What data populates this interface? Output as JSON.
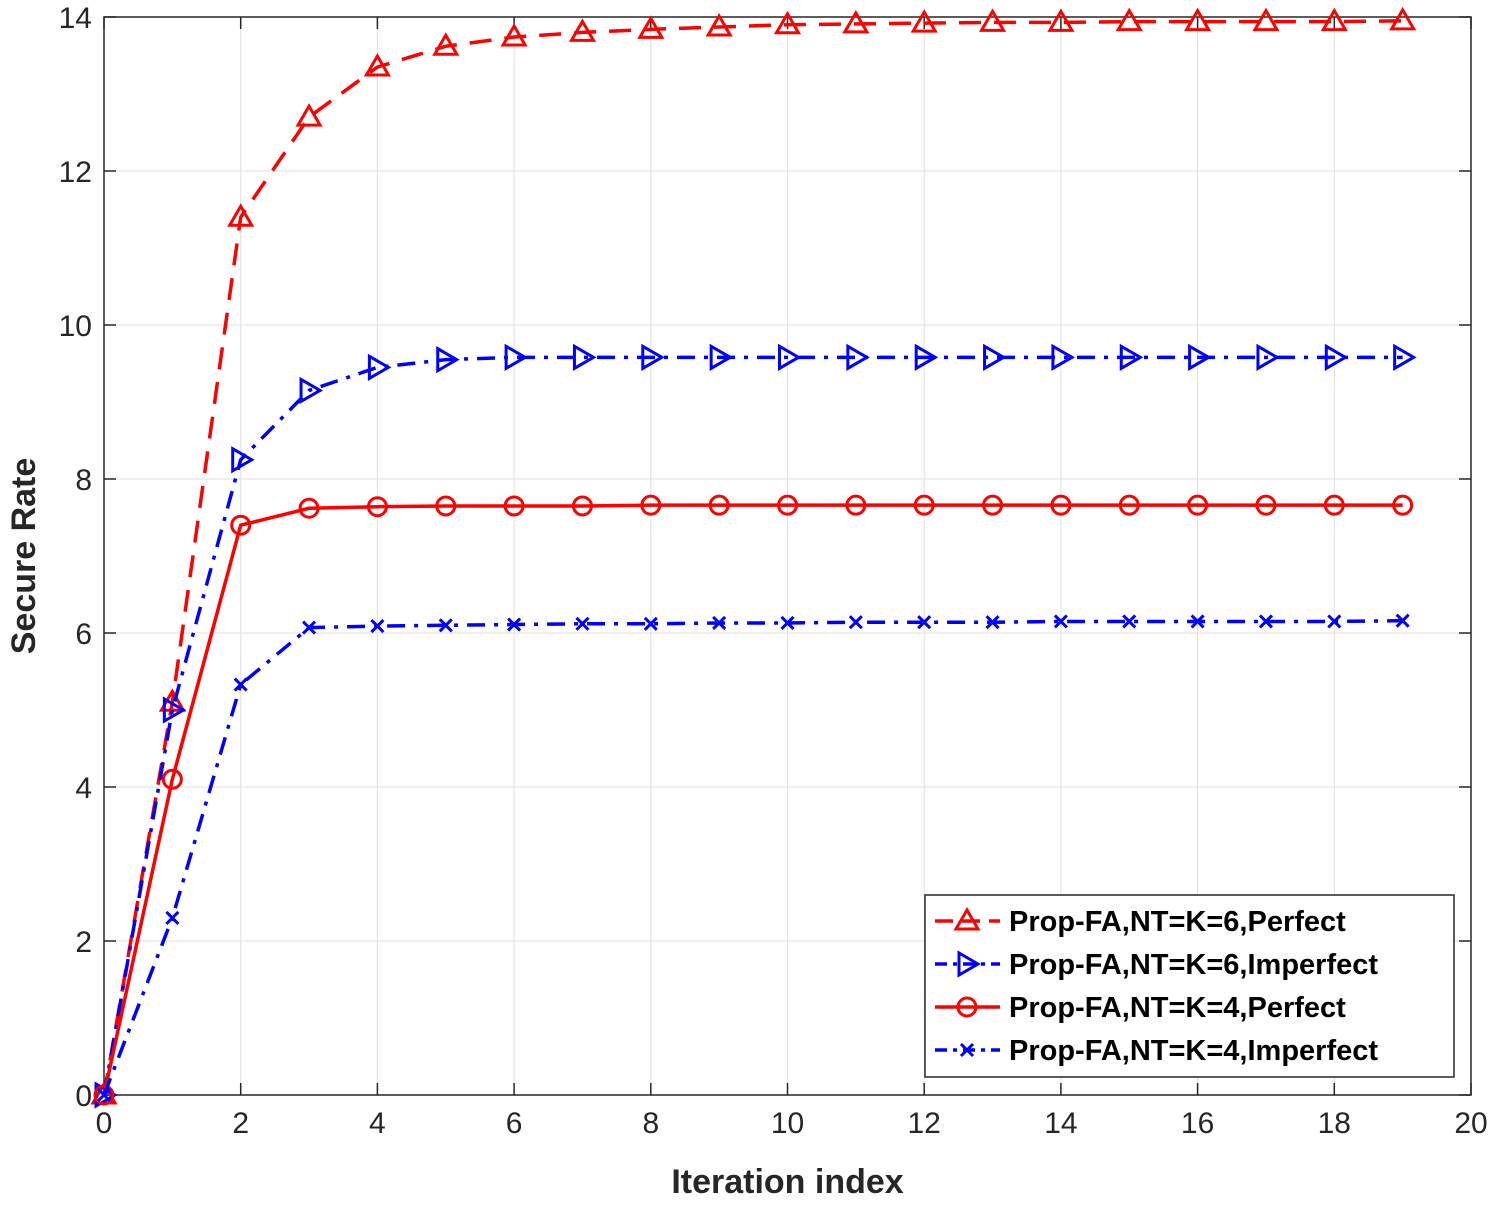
{
  "chart_data": {
    "type": "line",
    "title": "",
    "xlabel": "Iteration index",
    "ylabel": "Secure Rate",
    "xlim": [
      0,
      20
    ],
    "ylim": [
      0,
      14
    ],
    "xticks": [
      "0",
      "2",
      "4",
      "6",
      "8",
      "10",
      "12",
      "14",
      "16",
      "18",
      "20"
    ],
    "yticks": [
      "0",
      "2",
      "4",
      "6",
      "8",
      "10",
      "12",
      "14"
    ],
    "grid": true,
    "legend_position": "bottom-right",
    "x": [
      0,
      1,
      2,
      3,
      4,
      5,
      6,
      7,
      8,
      9,
      10,
      11,
      12,
      13,
      14,
      15,
      16,
      17,
      18,
      19
    ],
    "series": [
      {
        "name": "Prop-FA,NT=K=6,Perfect",
        "color": "#ff0000",
        "line_style": "dashed",
        "marker": "triangle-up",
        "values": [
          0,
          5.1,
          11.4,
          12.7,
          13.35,
          13.62,
          13.74,
          13.8,
          13.84,
          13.87,
          13.9,
          13.91,
          13.92,
          13.93,
          13.93,
          13.94,
          13.94,
          13.94,
          13.94,
          13.95
        ]
      },
      {
        "name": "Prop-FA,NT=K=6,Imperfect",
        "color": "#0000ff",
        "line_style": "dash-dot",
        "marker": "triangle-right",
        "values": [
          0,
          5.0,
          8.25,
          9.15,
          9.45,
          9.55,
          9.58,
          9.58,
          9.58,
          9.58,
          9.58,
          9.58,
          9.58,
          9.58,
          9.58,
          9.58,
          9.58,
          9.58,
          9.58,
          9.58
        ]
      },
      {
        "name": "Prop-FA,NT=K=4,Perfect",
        "color": "#ff0000",
        "line_style": "solid",
        "marker": "circle",
        "values": [
          0,
          4.1,
          7.4,
          7.62,
          7.64,
          7.65,
          7.65,
          7.65,
          7.66,
          7.66,
          7.66,
          7.66,
          7.66,
          7.66,
          7.66,
          7.66,
          7.66,
          7.66,
          7.66,
          7.66
        ]
      },
      {
        "name": "Prop-FA,NT=K=4,Imperfect",
        "color": "#0000ff",
        "line_style": "dash-dot",
        "marker": "x",
        "values": [
          0,
          2.3,
          5.33,
          6.07,
          6.09,
          6.1,
          6.11,
          6.12,
          6.12,
          6.13,
          6.13,
          6.14,
          6.14,
          6.14,
          6.15,
          6.15,
          6.15,
          6.15,
          6.15,
          6.16
        ]
      }
    ]
  }
}
